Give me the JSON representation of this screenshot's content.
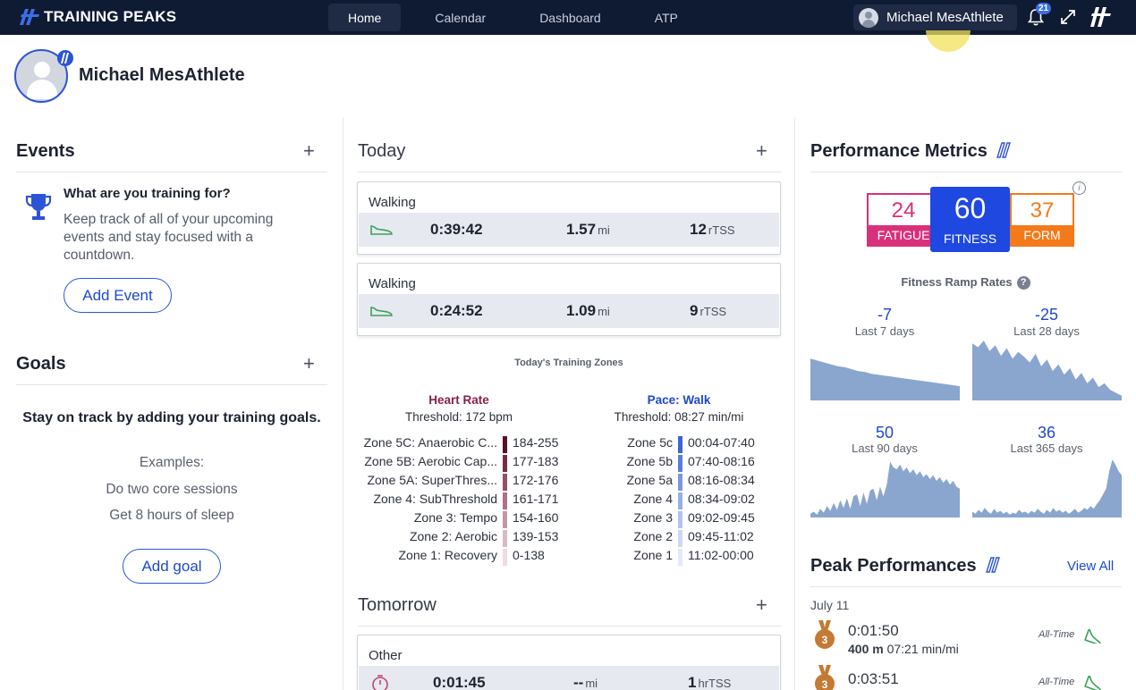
{
  "topbar": {
    "brand": "TRAINING PEAKS",
    "tabs": [
      {
        "label": "Home",
        "active": true
      },
      {
        "label": "Calendar",
        "active": false
      },
      {
        "label": "Dashboard",
        "active": false
      },
      {
        "label": "ATP",
        "active": false
      }
    ],
    "user_name": "Michael MesAthlete",
    "notifications": "21"
  },
  "profile": {
    "name": "Michael MesAthlete"
  },
  "events": {
    "title": "Events",
    "heading": "What are you training for?",
    "text": "Keep track of all of your upcoming events and stay focused with a countdown.",
    "button": "Add Event"
  },
  "goals": {
    "title": "Goals",
    "lead": "Stay on track by adding your training goals.",
    "examples_label": "Examples:",
    "examples": [
      "Do two core sessions",
      "Get 8 hours of sleep"
    ],
    "button": "Add goal"
  },
  "today": {
    "title": "Today",
    "workouts": [
      {
        "title": "Walking",
        "duration": "0:39:42",
        "distance": "1.57",
        "distance_unit": "mi",
        "tss": "12",
        "tss_unit": "rTSS"
      },
      {
        "title": "Walking",
        "duration": "0:24:52",
        "distance": "1.09",
        "distance_unit": "mi",
        "tss": "9",
        "tss_unit": "rTSS"
      }
    ],
    "zones_title": "Today's Training Zones",
    "heart_rate": {
      "title": "Heart Rate",
      "threshold": "Threshold: 172 bpm",
      "color": "#8a1f4a",
      "zones": [
        {
          "label": "Zone 5C: Anaerobic C...",
          "range": "184-255",
          "color": "#5c0f2c"
        },
        {
          "label": "Zone 5B: Aerobic Cap...",
          "range": "177-183",
          "color": "#7a2a47"
        },
        {
          "label": "Zone 5A: SuperThres...",
          "range": "172-176",
          "color": "#955068"
        },
        {
          "label": "Zone 4: SubThreshold",
          "range": "161-171",
          "color": "#ac7289"
        },
        {
          "label": "Zone 3: Tempo",
          "range": "154-160",
          "color": "#c596a8"
        },
        {
          "label": "Zone 2: Aerobic",
          "range": "139-153",
          "color": "#dbbac6"
        },
        {
          "label": "Zone 1: Recovery",
          "range": "0-138",
          "color": "#efdce3"
        }
      ]
    },
    "pace": {
      "title": "Pace: Walk",
      "threshold": "Threshold: 08:27 min/mi",
      "color": "#1f48cc",
      "zones": [
        {
          "label": "Zone 5c",
          "range": "00:04-07:40",
          "color": "#3a64d8"
        },
        {
          "label": "Zone 5b",
          "range": "07:40-08:16",
          "color": "#5a7ddd"
        },
        {
          "label": "Zone 5a",
          "range": "08:16-08:34",
          "color": "#7a96e3"
        },
        {
          "label": "Zone 4",
          "range": "08:34-09:02",
          "color": "#98aee8"
        },
        {
          "label": "Zone 3",
          "range": "09:02-09:45",
          "color": "#b4c4ee"
        },
        {
          "label": "Zone 2",
          "range": "09:45-11:02",
          "color": "#cdd8f3"
        },
        {
          "label": "Zone 1",
          "range": "11:02-00:00",
          "color": "#e3e9f8"
        }
      ]
    }
  },
  "tomorrow": {
    "title": "Tomorrow",
    "workouts": [
      {
        "title": "Other",
        "duration": "0:01:45",
        "distance": "--",
        "distance_unit": "mi",
        "tss": "1",
        "tss_unit": "hrTSS"
      }
    ]
  },
  "performance": {
    "title": "Performance Metrics",
    "fatigue": {
      "value": "24",
      "label": "FATIGUE",
      "color": "#d8317b"
    },
    "fitness": {
      "value": "60",
      "label": "FITNESS",
      "color": "#1f48e0"
    },
    "form": {
      "value": "37",
      "label": "FORM",
      "color": "#f27a1a"
    },
    "ramp_title": "Fitness Ramp Rates",
    "ramps": [
      {
        "value": "-7",
        "label": "Last 7 days"
      },
      {
        "value": "-25",
        "label": "Last 28 days"
      },
      {
        "value": "50",
        "label": "Last 90 days"
      },
      {
        "value": "36",
        "label": "Last 365 days"
      }
    ]
  },
  "peak": {
    "title": "Peak Performances",
    "view_all": "View All",
    "date": "July 11",
    "items": [
      {
        "time": "0:01:50",
        "distance": "400 m",
        "pace": "07:21 min/mi",
        "tag": "All-Time",
        "rank": "3"
      },
      {
        "time": "0:03:51",
        "distance": "",
        "pace": "",
        "tag": "All-Time",
        "rank": "3"
      }
    ]
  },
  "icons": {
    "logo": "training-peaks-logo-icon",
    "bell": "bell-icon",
    "expand": "expand-icon",
    "trophy": "trophy-icon",
    "shoe": "shoe-icon",
    "stopwatch": "stopwatch-icon",
    "medal": "medal-icon",
    "info": "info-icon",
    "help": "help-icon"
  },
  "chart_data": [
    {
      "type": "area",
      "label": "Last 7 days",
      "values": [
        44,
        42,
        40,
        38,
        36,
        35,
        33,
        31,
        30,
        28,
        27,
        26,
        25,
        24,
        23,
        22,
        21,
        20,
        19,
        18,
        17,
        16,
        15
      ]
    },
    {
      "type": "area",
      "label": "Last 28 days",
      "values": [
        60,
        56,
        63,
        52,
        58,
        47,
        55,
        44,
        51,
        46,
        40,
        49,
        36,
        43,
        31,
        38,
        27,
        34,
        22,
        29,
        18,
        24,
        14,
        18,
        11,
        8,
        5
      ]
    },
    {
      "type": "area",
      "label": "Last 90 days",
      "values": [
        4,
        6,
        3,
        9,
        5,
        12,
        7,
        15,
        8,
        18,
        10,
        20,
        9,
        22,
        24,
        12,
        26,
        14,
        28,
        30,
        18,
        32,
        22,
        34,
        58,
        52,
        50,
        55,
        48,
        52,
        46,
        50,
        44,
        48,
        42,
        45,
        40,
        44,
        38,
        42,
        36,
        40,
        34,
        38,
        32,
        30
      ]
    },
    {
      "type": "area",
      "label": "Last 365 days",
      "values": [
        6,
        4,
        8,
        5,
        10,
        6,
        4,
        9,
        5,
        7,
        4,
        6,
        3,
        5,
        4,
        8,
        5,
        6,
        4,
        7,
        5,
        9,
        6,
        4,
        8,
        5,
        10,
        6,
        8,
        5,
        7,
        4,
        6,
        9,
        5,
        7,
        10,
        8,
        12,
        9,
        14,
        18,
        24,
        30,
        48,
        60,
        55,
        48,
        44
      ]
    }
  ]
}
